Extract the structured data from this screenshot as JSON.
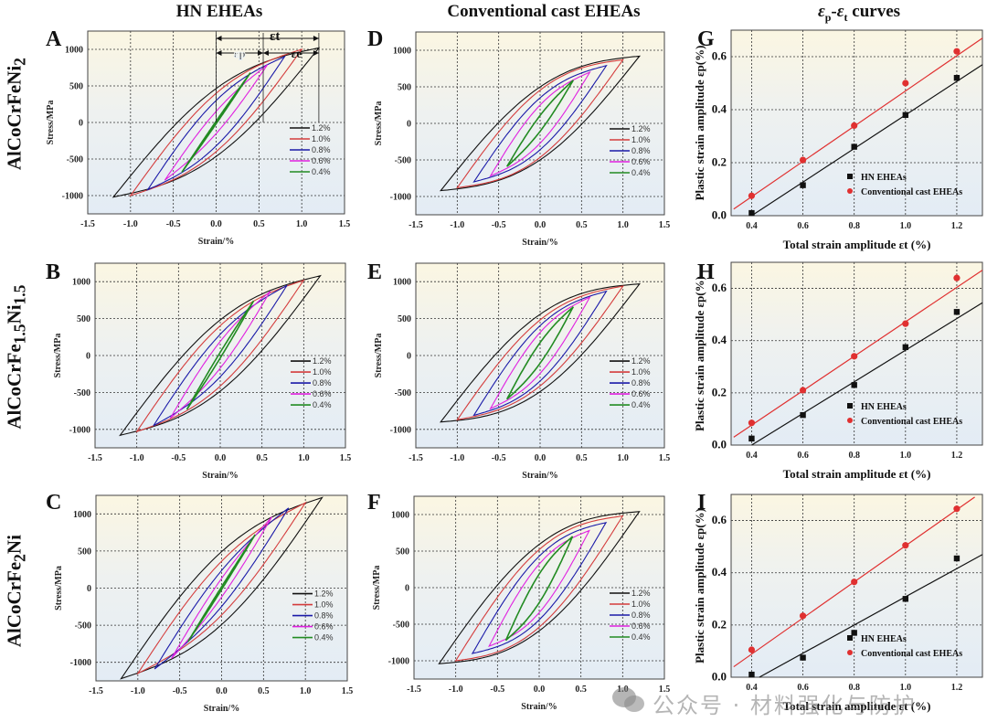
{
  "column_titles": [
    "HN EHEAs",
    "Conventional cast EHEAs",
    "εp-εt curves"
  ],
  "row_titles": [
    {
      "base": "AlCoCrFeNi",
      "sub": "2",
      "tail": ""
    },
    {
      "base": "AlCoCrFe",
      "sub": "1.5",
      "tail": "Ni",
      "sub2": "1.5"
    },
    {
      "base": "AlCoCrFe",
      "sub": "2",
      "tail": "Ni"
    }
  ],
  "watermark": "公众号 · 材料强化与防护",
  "colors": {
    "a12": "#111111",
    "a10": "#d43c3c",
    "a08": "#1a1aa8",
    "a06": "#e020e0",
    "a04": "#228b22",
    "fit_red": "#e03030",
    "fit_black": "#111111"
  },
  "chart_data": [
    {
      "id": "A",
      "type": "line",
      "title": "",
      "xlabel": "Strain/%",
      "ylabel": "Stress/MPa",
      "xlim": [
        -1.5,
        1.5
      ],
      "ylim": [
        -1250,
        1250
      ],
      "xticks": [
        "-1.5",
        "-1.0",
        "-0.5",
        "0.0",
        "0.5",
        "1.0",
        "1.5"
      ],
      "yticks": [
        "-1000",
        "-500",
        "0",
        "500",
        "1000"
      ],
      "grid": true,
      "legend": "right",
      "annotation": {
        "total": "εt",
        "plastic": "εp",
        "elastic": "εe"
      },
      "series": [
        {
          "name": "1.2%",
          "amp": 1.2,
          "smax": 1020,
          "smin": -1020,
          "eps_p": 0.52
        },
        {
          "name": "1.0%",
          "amp": 1.0,
          "smax": 1000,
          "smin": -1000,
          "eps_p": 0.38
        },
        {
          "name": "0.8%",
          "amp": 0.8,
          "smax": 900,
          "smin": -920,
          "eps_p": 0.26
        },
        {
          "name": "0.6%",
          "amp": 0.6,
          "smax": 790,
          "smin": -790,
          "eps_p": 0.11
        },
        {
          "name": "0.4%",
          "amp": 0.4,
          "smax": 680,
          "smin": -680,
          "eps_p": 0.01
        }
      ]
    },
    {
      "id": "D",
      "type": "line",
      "title": "",
      "xlabel": "Strain/%",
      "ylabel": "Stress/MPa",
      "xlim": [
        -1.5,
        1.5
      ],
      "ylim": [
        -1250,
        1250
      ],
      "xticks": [
        "-1.5",
        "-1.0",
        "-0.5",
        "0.0",
        "0.5",
        "1.0",
        "1.5"
      ],
      "yticks": [
        "-1000",
        "-500",
        "0",
        "500",
        "1000"
      ],
      "grid": true,
      "legend": "right",
      "series": [
        {
          "name": "1.2%",
          "amp": 1.2,
          "smax": 920,
          "smin": -920,
          "eps_p": 0.62
        },
        {
          "name": "1.0%",
          "amp": 1.0,
          "smax": 870,
          "smin": -880,
          "eps_p": 0.5
        },
        {
          "name": "0.8%",
          "amp": 0.8,
          "smax": 790,
          "smin": -800,
          "eps_p": 0.34
        },
        {
          "name": "0.6%",
          "amp": 0.6,
          "smax": 700,
          "smin": -720,
          "eps_p": 0.21
        },
        {
          "name": "0.4%",
          "amp": 0.4,
          "smax": 590,
          "smin": -590,
          "eps_p": 0.07
        }
      ]
    },
    {
      "id": "G",
      "type": "scatter",
      "title": "",
      "xlabel": "Total strain amplitude εt (%)",
      "ylabel": "Plastic strain amplitude εp(%)",
      "xlim": [
        0.32,
        1.3
      ],
      "ylim": [
        0,
        0.7
      ],
      "xticks": [
        "0.4",
        "0.6",
        "0.8",
        "1.0",
        "1.2"
      ],
      "yticks": [
        "0.0",
        "0.2",
        "0.4",
        "0.6"
      ],
      "grid": true,
      "legend": "bottom-right",
      "x": [
        0.4,
        0.6,
        0.8,
        1.0,
        1.2
      ],
      "series": [
        {
          "name": "HN EHEAs",
          "marker": "square",
          "values": [
            0.01,
            0.115,
            0.26,
            0.38,
            0.52
          ],
          "fit": [
            [
              0.4,
              0.0
            ],
            [
              1.3,
              0.57
            ]
          ]
        },
        {
          "name": "Conventional cast EHEAs",
          "marker": "circle",
          "values": [
            0.075,
            0.21,
            0.34,
            0.5,
            0.62
          ],
          "fit": [
            [
              0.33,
              0.025
            ],
            [
              1.3,
              0.67
            ]
          ]
        }
      ]
    },
    {
      "id": "B",
      "type": "line",
      "title": "",
      "xlabel": "Strain/%",
      "ylabel": "Stress/MPa",
      "xlim": [
        -1.5,
        1.5
      ],
      "ylim": [
        -1250,
        1250
      ],
      "xticks": [
        "-1.5",
        "-1.0",
        "-0.5",
        "0.0",
        "0.5",
        "1.0",
        "1.5"
      ],
      "yticks": [
        "-1000",
        "-500",
        "0",
        "500",
        "1000"
      ],
      "grid": true,
      "legend": "right",
      "series": [
        {
          "name": "1.2%",
          "amp": 1.2,
          "smax": 1080,
          "smin": -1080,
          "eps_p": 0.51
        },
        {
          "name": "1.0%",
          "amp": 1.0,
          "smax": 1020,
          "smin": -1030,
          "eps_p": 0.38
        },
        {
          "name": "0.8%",
          "amp": 0.8,
          "smax": 950,
          "smin": -950,
          "eps_p": 0.23
        },
        {
          "name": "0.6%",
          "amp": 0.6,
          "smax": 870,
          "smin": -850,
          "eps_p": 0.12
        },
        {
          "name": "0.4%",
          "amp": 0.4,
          "smax": 740,
          "smin": -730,
          "eps_p": 0.02
        }
      ]
    },
    {
      "id": "E",
      "type": "line",
      "title": "",
      "xlabel": "Strain/%",
      "ylabel": "Stress/MPa",
      "xlim": [
        -1.5,
        1.5
      ],
      "ylim": [
        -1250,
        1250
      ],
      "xticks": [
        "-1.5",
        "-1.0",
        "-0.5",
        "0.0",
        "0.5",
        "1.0",
        "1.5"
      ],
      "yticks": [
        "-1000",
        "-500",
        "0",
        "500",
        "1000"
      ],
      "grid": true,
      "legend": "right",
      "series": [
        {
          "name": "1.2%",
          "amp": 1.2,
          "smax": 970,
          "smin": -900,
          "eps_p": 0.64
        },
        {
          "name": "1.0%",
          "amp": 1.0,
          "smax": 940,
          "smin": -870,
          "eps_p": 0.47
        },
        {
          "name": "0.8%",
          "amp": 0.8,
          "smax": 870,
          "smin": -810,
          "eps_p": 0.34
        },
        {
          "name": "0.6%",
          "amp": 0.6,
          "smax": 790,
          "smin": -720,
          "eps_p": 0.21
        },
        {
          "name": "0.4%",
          "amp": 0.4,
          "smax": 660,
          "smin": -590,
          "eps_p": 0.085
        }
      ]
    },
    {
      "id": "H",
      "type": "scatter",
      "title": "",
      "xlabel": "Total strain amplitude εt (%)",
      "ylabel": "Plastic strain amplitude εp(%)",
      "xlim": [
        0.32,
        1.3
      ],
      "ylim": [
        0,
        0.7
      ],
      "xticks": [
        "0.4",
        "0.6",
        "0.8",
        "1.0",
        "1.2"
      ],
      "yticks": [
        "0.0",
        "0.2",
        "0.4",
        "0.6"
      ],
      "grid": true,
      "legend": "bottom-right",
      "x": [
        0.4,
        0.6,
        0.8,
        1.0,
        1.2
      ],
      "series": [
        {
          "name": "HN EHEAs",
          "marker": "square",
          "values": [
            0.025,
            0.115,
            0.23,
            0.375,
            0.51
          ],
          "fit": [
            [
              0.4,
              0.0
            ],
            [
              1.3,
              0.545
            ]
          ]
        },
        {
          "name": "Conventional cast EHEAs",
          "marker": "circle",
          "values": [
            0.085,
            0.21,
            0.34,
            0.465,
            0.64
          ],
          "fit": [
            [
              0.33,
              0.03
            ],
            [
              1.3,
              0.67
            ]
          ]
        }
      ]
    },
    {
      "id": "C",
      "type": "line",
      "title": "",
      "xlabel": "Strain/%",
      "ylabel": "Stress/MPa",
      "xlim": [
        -1.5,
        1.5
      ],
      "ylim": [
        -1250,
        1250
      ],
      "xticks": [
        "-1.5",
        "-1.0",
        "-0.5",
        "0.0",
        "0.5",
        "1.0",
        "1.5"
      ],
      "yticks": [
        "-1000",
        "-500",
        "0",
        "500",
        "1000"
      ],
      "grid": true,
      "legend": "right",
      "series": [
        {
          "name": "1.2%",
          "amp": 1.2,
          "smax": 1220,
          "smin": -1220,
          "eps_p": 0.46
        },
        {
          "name": "1.0%",
          "amp": 1.0,
          "smax": 1150,
          "smin": -1150,
          "eps_p": 0.3
        },
        {
          "name": "0.8%",
          "amp": 0.8,
          "smax": 1080,
          "smin": -1090,
          "eps_p": 0.17
        },
        {
          "name": "0.6%",
          "amp": 0.6,
          "smax": 960,
          "smin": -950,
          "eps_p": 0.075
        },
        {
          "name": "0.4%",
          "amp": 0.4,
          "smax": 720,
          "smin": -720,
          "eps_p": 0.01
        }
      ]
    },
    {
      "id": "F",
      "type": "line",
      "title": "",
      "xlabel": "Strain/%",
      "ylabel": "Stress/MPa",
      "xlim": [
        -1.5,
        1.5
      ],
      "ylim": [
        -1250,
        1250
      ],
      "xticks": [
        "-1.5",
        "-1.0",
        "-0.5",
        "0.0",
        "0.5",
        "1.0",
        "1.5"
      ],
      "yticks": [
        "-1000",
        "-500",
        "0",
        "500",
        "1000"
      ],
      "grid": true,
      "legend": "right",
      "series": [
        {
          "name": "1.2%",
          "amp": 1.2,
          "smax": 1040,
          "smin": -1040,
          "eps_p": 0.65
        },
        {
          "name": "1.0%",
          "amp": 1.0,
          "smax": 980,
          "smin": -1000,
          "eps_p": 0.51
        },
        {
          "name": "0.8%",
          "amp": 0.8,
          "smax": 890,
          "smin": -900,
          "eps_p": 0.37
        },
        {
          "name": "0.6%",
          "amp": 0.6,
          "smax": 780,
          "smin": -800,
          "eps_p": 0.24
        },
        {
          "name": "0.4%",
          "amp": 0.4,
          "smax": 700,
          "smin": -720,
          "eps_p": 0.105
        }
      ]
    },
    {
      "id": "I",
      "type": "scatter",
      "title": "",
      "xlabel": "Total strain amplitude εt (%)",
      "ylabel": "Plastic strain amplitude εp(%)",
      "xlim": [
        0.32,
        1.3
      ],
      "ylim": [
        0,
        0.7
      ],
      "xticks": [
        "0.4",
        "0.6",
        "0.8",
        "1.0",
        "1.2"
      ],
      "yticks": [
        "0.0",
        "0.2",
        "0.4",
        "0.6"
      ],
      "grid": true,
      "legend": "bottom-right",
      "x": [
        0.4,
        0.6,
        0.8,
        1.0,
        1.2
      ],
      "series": [
        {
          "name": "HN EHEAs",
          "marker": "square",
          "values": [
            0.01,
            0.075,
            0.17,
            0.3,
            0.455
          ],
          "fit": [
            [
              0.43,
              0.0
            ],
            [
              1.3,
              0.47
            ]
          ]
        },
        {
          "name": "Conventional cast EHEAs",
          "marker": "circle",
          "values": [
            0.105,
            0.235,
            0.365,
            0.505,
            0.645
          ],
          "fit": [
            [
              0.33,
              0.04
            ],
            [
              1.27,
              0.69
            ]
          ]
        }
      ]
    }
  ]
}
